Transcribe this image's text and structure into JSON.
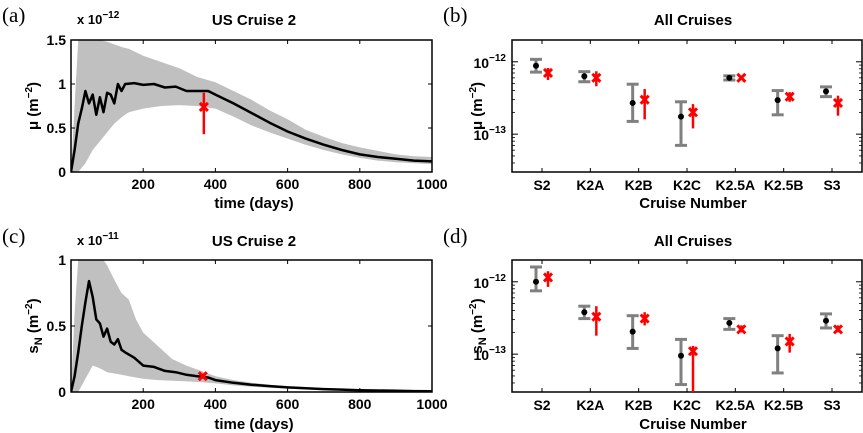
{
  "panels": [
    {
      "id": "a",
      "letter": "(a)",
      "title": "US Cruise 2",
      "ylabel_main": "μ (m",
      "ylabel_sup": "−2",
      "ylabel_tail": ")",
      "xlabel": "time (days)",
      "sci_base": "x 10",
      "sci_exp": "−12"
    },
    {
      "id": "b",
      "letter": "(b)",
      "title": "All Cruises",
      "ylabel_main": "μ (m",
      "ylabel_sup": "−2",
      "ylabel_tail": ")",
      "xlabel": "Cruise Number"
    },
    {
      "id": "c",
      "letter": "(c)",
      "title": "US Cruise 2",
      "ylabel_main": "s",
      "ylabel_sub": "N",
      "ylabel_main2": " (m",
      "ylabel_sup": "−2",
      "ylabel_tail": ")",
      "xlabel": "time (days)",
      "sci_base": "x 10",
      "sci_exp": "−11"
    },
    {
      "id": "d",
      "letter": "(d)",
      "title": "All Cruises",
      "ylabel_main": "s",
      "ylabel_sub": "N",
      "ylabel_main2": " (m",
      "ylabel_sup": "−2",
      "ylabel_tail": ")",
      "xlabel": "Cruise Number"
    }
  ],
  "chart_data": [
    {
      "panel": "a",
      "type": "line",
      "title": "US Cruise 2",
      "xlabel": "time (days)",
      "ylabel": "μ (m−2)",
      "xlim": [
        0,
        1000
      ],
      "ylim": [
        0,
        1.5
      ],
      "y_multiplier_label": "x 10−12",
      "xticks": [
        "200",
        "400",
        "600",
        "800",
        "1000"
      ],
      "xtick_values": [
        200,
        400,
        600,
        800,
        1000
      ],
      "yticks": [
        "0",
        "0.5",
        "1",
        "1.5"
      ],
      "ytick_values": [
        0,
        0.5,
        1,
        1.5
      ],
      "line_color": "#000000",
      "band_color": "#c0c0c0",
      "marker_color": "#ff0000",
      "series": [
        {
          "kind": "mean",
          "x": [
            0,
            10,
            20,
            30,
            40,
            50,
            60,
            70,
            80,
            90,
            100,
            110,
            120,
            130,
            140,
            150,
            175,
            200,
            230,
            260,
            290,
            320,
            350,
            380,
            400,
            450,
            500,
            550,
            600,
            650,
            700,
            750,
            800,
            850,
            900,
            950,
            1000
          ],
          "y": [
            0.0,
            0.25,
            0.55,
            0.72,
            0.92,
            0.78,
            0.88,
            0.65,
            0.85,
            0.68,
            0.9,
            0.88,
            0.78,
            1.0,
            0.92,
            1.0,
            1.01,
            0.99,
            1.0,
            0.96,
            0.97,
            0.92,
            0.92,
            0.92,
            0.88,
            0.78,
            0.67,
            0.56,
            0.46,
            0.38,
            0.31,
            0.25,
            0.2,
            0.17,
            0.15,
            0.13,
            0.12
          ]
        },
        {
          "kind": "band_upper",
          "x": [
            0,
            20,
            40,
            60,
            80,
            100,
            120,
            140,
            160,
            200,
            250,
            300,
            350,
            400,
            450,
            500,
            550,
            600,
            650,
            700,
            750,
            800,
            850,
            900,
            950,
            1000
          ],
          "y": [
            0.0,
            1.5,
            1.5,
            1.5,
            1.5,
            1.48,
            1.45,
            1.42,
            1.4,
            1.32,
            1.25,
            1.18,
            1.08,
            1.02,
            0.92,
            0.82,
            0.7,
            0.6,
            0.48,
            0.4,
            0.33,
            0.28,
            0.24,
            0.2,
            0.18,
            0.17
          ]
        },
        {
          "kind": "band_lower",
          "x": [
            0,
            20,
            40,
            60,
            80,
            100,
            120,
            140,
            160,
            200,
            250,
            300,
            350,
            400,
            450,
            500,
            550,
            600,
            650,
            700,
            750,
            800,
            850,
            900,
            950,
            1000
          ],
          "y": [
            0.0,
            0.0,
            0.1,
            0.25,
            0.35,
            0.45,
            0.55,
            0.62,
            0.68,
            0.72,
            0.75,
            0.76,
            0.75,
            0.72,
            0.63,
            0.53,
            0.45,
            0.38,
            0.31,
            0.25,
            0.2,
            0.16,
            0.13,
            0.11,
            0.1,
            0.09
          ]
        },
        {
          "kind": "observation",
          "x": [
            368
          ],
          "y": [
            0.74
          ],
          "err_low": [
            0.43
          ],
          "err_high": [
            0.9
          ]
        }
      ]
    },
    {
      "panel": "b",
      "type": "scatter",
      "title": "All Cruises",
      "xlabel": "Cruise Number",
      "ylabel": "μ (m−2)",
      "y_scale": "log",
      "ylim": [
        3e-14,
        2e-12
      ],
      "yticks": [
        1e-13,
        1e-12
      ],
      "categories": [
        "S2",
        "K2A",
        "K2B",
        "K2C",
        "K2.5A",
        "K2.5B",
        "S3"
      ],
      "category_labels": [
        "S2",
        "K2A",
        "K2B",
        "K2C",
        "K2.5A",
        "K2.5B",
        "S3"
      ],
      "model_color": "#808080",
      "observed_color": "#ff0000",
      "series": [
        {
          "name": "",
          "kind": "model",
          "values": [
            8.8e-13,
            6.3e-13,
            2.7e-13,
            1.75e-13,
            6e-13,
            2.95e-13,
            3.9e-13
          ],
          "err_low": [
            7.2e-13,
            5.3e-13,
            1.5e-13,
            7e-14,
            5.6e-13,
            1.85e-13,
            3.3e-13
          ],
          "err_high": [
            1.08e-12,
            7.3e-13,
            4.9e-13,
            2.8e-13,
            6.4e-13,
            4e-13,
            4.5e-13
          ]
        },
        {
          "name": "",
          "kind": "observed",
          "values": [
            7e-13,
            6e-13,
            3e-13,
            2e-13,
            6e-13,
            3.3e-13,
            2.7e-13
          ],
          "err_low": [
            5.6e-13,
            4.6e-13,
            1.6e-13,
            1.2e-13,
            5.6e-13,
            2.8e-13,
            1.8e-13
          ],
          "err_high": [
            8.2e-13,
            7.4e-13,
            4.2e-13,
            2.6e-13,
            6.4e-13,
            3.8e-13,
            3.4e-13
          ]
        }
      ]
    },
    {
      "panel": "c",
      "type": "line",
      "title": "US Cruise 2",
      "xlabel": "time (days)",
      "ylabel": "sN (m−2)",
      "xlim": [
        0,
        1000
      ],
      "ylim": [
        0,
        1
      ],
      "y_multiplier_label": "x 10−11",
      "xticks": [
        "200",
        "400",
        "600",
        "800",
        "1000"
      ],
      "xtick_values": [
        200,
        400,
        600,
        800,
        1000
      ],
      "yticks": [
        "0",
        "0.5",
        "1"
      ],
      "ytick_values": [
        0,
        0.5,
        1
      ],
      "line_color": "#000000",
      "band_color": "#c0c0c0",
      "marker_color": "#ff0000",
      "series": [
        {
          "kind": "mean",
          "x": [
            0,
            10,
            20,
            30,
            40,
            50,
            60,
            70,
            80,
            90,
            100,
            110,
            120,
            130,
            140,
            150,
            175,
            200,
            230,
            260,
            290,
            320,
            350,
            380,
            400,
            450,
            500,
            550,
            600,
            650,
            700,
            750,
            800,
            850,
            900,
            950,
            1000
          ],
          "y": [
            0.0,
            0.12,
            0.3,
            0.5,
            0.68,
            0.84,
            0.72,
            0.55,
            0.52,
            0.42,
            0.48,
            0.38,
            0.36,
            0.4,
            0.32,
            0.3,
            0.26,
            0.2,
            0.19,
            0.16,
            0.15,
            0.13,
            0.12,
            0.11,
            0.09,
            0.07,
            0.055,
            0.045,
            0.035,
            0.028,
            0.022,
            0.018,
            0.014,
            0.011,
            0.009,
            0.007,
            0.006
          ]
        },
        {
          "kind": "band_upper",
          "x": [
            0,
            10,
            20,
            30,
            40,
            50,
            60,
            70,
            80,
            90,
            100,
            120,
            140,
            160,
            180,
            200,
            240,
            280,
            320,
            360,
            400,
            450,
            500,
            550,
            600,
            700,
            800,
            900,
            1000
          ],
          "y": [
            0.0,
            0.6,
            1.0,
            1.0,
            1.0,
            1.0,
            1.0,
            1.0,
            1.0,
            1.0,
            0.96,
            0.85,
            0.75,
            0.7,
            0.55,
            0.45,
            0.35,
            0.25,
            0.2,
            0.16,
            0.12,
            0.09,
            0.07,
            0.055,
            0.045,
            0.03,
            0.02,
            0.014,
            0.01
          ]
        },
        {
          "kind": "band_lower",
          "x": [
            0,
            20,
            40,
            60,
            80,
            100,
            120,
            140,
            160,
            180,
            200,
            240,
            280,
            320,
            360,
            400,
            450,
            500,
            550,
            600,
            700,
            800,
            900,
            1000
          ],
          "y": [
            0.0,
            0.0,
            0.1,
            0.2,
            0.18,
            0.15,
            0.14,
            0.13,
            0.12,
            0.11,
            0.1,
            0.09,
            0.085,
            0.08,
            0.075,
            0.065,
            0.05,
            0.04,
            0.032,
            0.025,
            0.016,
            0.01,
            0.006,
            0.004
          ]
        },
        {
          "kind": "observation",
          "x": [
            365
          ],
          "y": [
            0.12
          ],
          "err_low": [
            0.1
          ],
          "err_high": [
            0.14
          ]
        }
      ]
    },
    {
      "panel": "d",
      "type": "scatter",
      "title": "All Cruises",
      "xlabel": "Cruise Number",
      "ylabel": "sN (m−2)",
      "y_scale": "log",
      "ylim": [
        3e-14,
        2e-12
      ],
      "yticks": [
        1e-13,
        1e-12
      ],
      "categories": [
        "S2",
        "K2A",
        "K2B",
        "K2C",
        "K2.5A",
        "K2.5B",
        "S3"
      ],
      "category_labels": [
        "S2",
        "K2A",
        "K2B",
        "K2C",
        "K2.5A",
        "K2.5B",
        "S3"
      ],
      "model_color": "#808080",
      "observed_color": "#ff0000",
      "series": [
        {
          "name": "",
          "kind": "model",
          "values": [
            1e-12,
            3.8e-13,
            2.05e-13,
            9.5e-14,
            2.7e-13,
            1.2e-13,
            2.9e-13
          ],
          "err_low": [
            7.5e-13,
            3.1e-13,
            1.2e-13,
            3.8e-14,
            2.2e-13,
            5.5e-14,
            2.3e-13
          ],
          "err_high": [
            1.6e-12,
            4.6e-13,
            3.4e-13,
            1.6e-13,
            3.1e-13,
            1.8e-13,
            3.6e-13
          ]
        },
        {
          "name": "",
          "kind": "observed",
          "values": [
            1.15e-12,
            3.3e-13,
            3.1e-13,
            1.1e-13,
            2.2e-13,
            1.5e-13,
            2.2e-13
          ],
          "err_low": [
            8.5e-13,
            1.8e-13,
            2.5e-13,
            3e-14,
            2e-13,
            1.05e-13,
            2e-13
          ],
          "err_high": [
            1.4e-12,
            4.6e-13,
            3.8e-13,
            1.3e-13,
            2.5e-13,
            1.9e-13,
            2.5e-13
          ]
        }
      ]
    }
  ]
}
